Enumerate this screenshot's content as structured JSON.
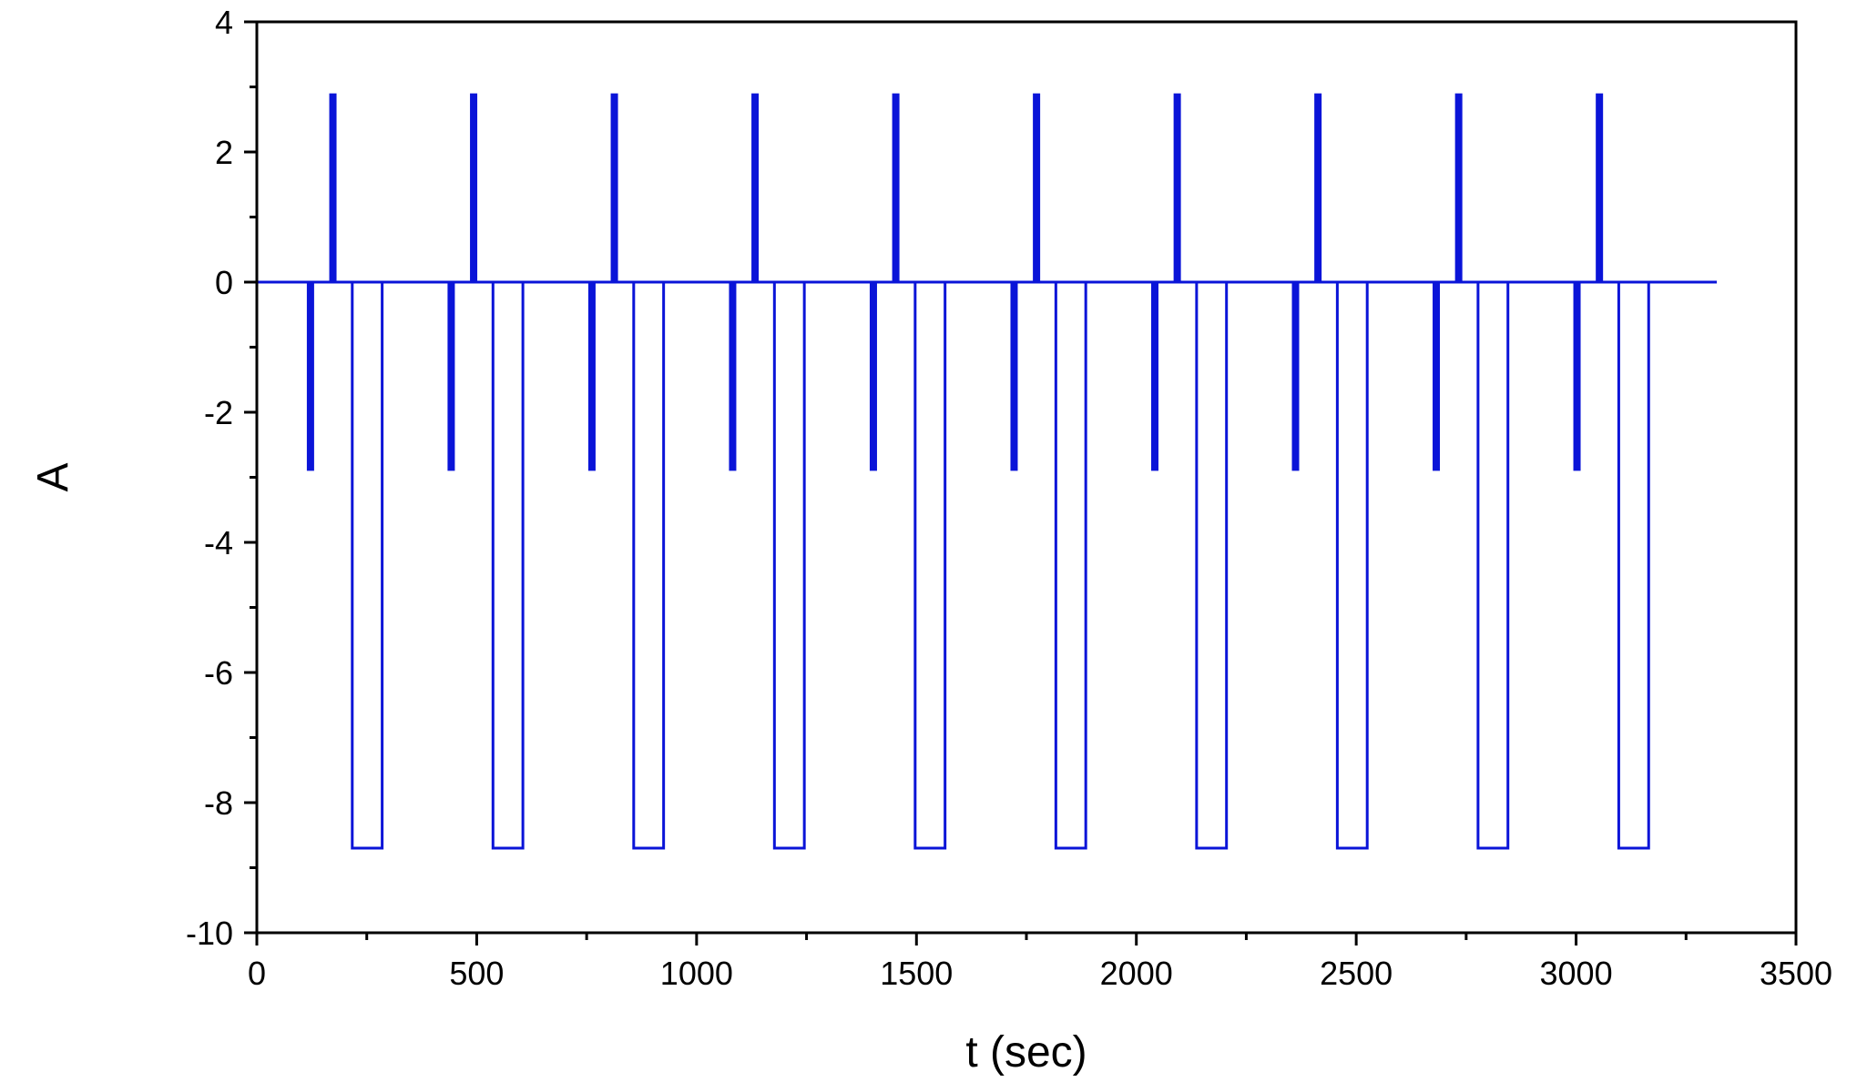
{
  "chart_data": {
    "type": "line",
    "title": "",
    "xlabel": "t (sec)",
    "ylabel": "A",
    "xlim": [
      0,
      3500
    ],
    "ylim": [
      -10,
      4
    ],
    "x_ticks": [
      0,
      500,
      1000,
      1500,
      2000,
      2500,
      3000,
      3500
    ],
    "y_ticks": [
      4,
      2,
      0,
      -2,
      -4,
      -6,
      -8,
      -10
    ],
    "grid": false,
    "legend": "none",
    "line_color": "#0a14d8",
    "series": [
      {
        "period": 320,
        "cycles": 10,
        "x_end": 3320,
        "baseline": 0,
        "neg_spike": {
          "t": 122,
          "value": -2.9
        },
        "pos_spike": {
          "t": 173,
          "value": 2.9
        },
        "pulse": {
          "t_start": 217,
          "t_end": 285,
          "value": -8.7
        },
        "points": [
          [
            0,
            0
          ],
          [
            116,
            0
          ],
          [
            122,
            -2.9
          ],
          [
            128,
            0
          ],
          [
            167,
            0
          ],
          [
            173,
            2.9
          ],
          [
            179,
            0
          ],
          [
            217,
            0
          ],
          [
            217,
            -8.7
          ],
          [
            285,
            -8.7
          ],
          [
            285,
            0
          ]
        ]
      }
    ]
  }
}
